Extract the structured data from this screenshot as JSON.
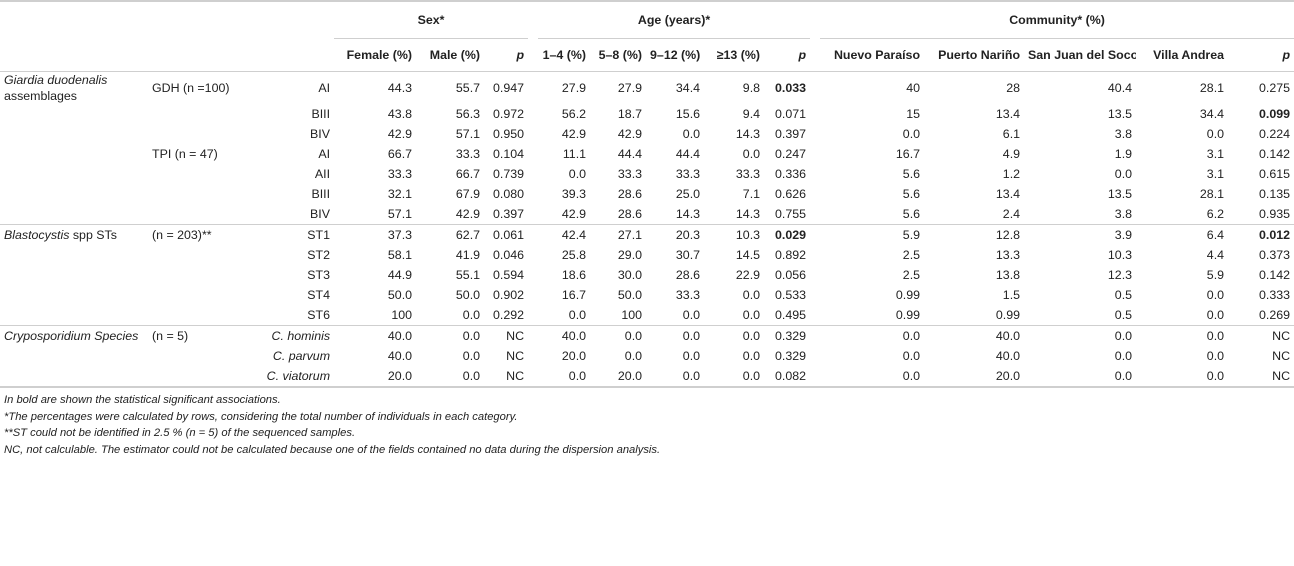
{
  "header": {
    "groups": {
      "sex": "Sex*",
      "age": "Age (years)*",
      "community": "Community* (%)"
    },
    "columns": [
      "Female (%)",
      "Male (%)",
      "p",
      "1–4 (%)",
      "5–8 (%)",
      "9–12 (%)",
      "≥13 (%)",
      "p",
      "Nuevo Paraíso",
      "Puerto Nariño",
      "San Juan del Soco",
      "Villa Andrea",
      "p"
    ]
  },
  "sections": [
    {
      "name_line1": "Giardia duodenalis",
      "name_line2": "assemblages",
      "rows": [
        {
          "method": "GDH (n =100)",
          "type": "AI",
          "values": [
            "44.3",
            "55.7",
            "0.947",
            "27.9",
            "27.9",
            "34.4",
            "9.8",
            "0.033",
            "40",
            "28",
            "40.4",
            "28.1",
            "0.275"
          ],
          "bold": [
            7
          ]
        },
        {
          "method": "",
          "type": "BIII",
          "values": [
            "43.8",
            "56.3",
            "0.972",
            "56.2",
            "18.7",
            "15.6",
            "9.4",
            "0.071",
            "15",
            "13.4",
            "13.5",
            "34.4",
            "0.099"
          ],
          "bold": [
            12
          ]
        },
        {
          "method": "",
          "type": "BIV",
          "values": [
            "42.9",
            "57.1",
            "0.950",
            "42.9",
            "42.9",
            "0.0",
            "14.3",
            "0.397",
            "0.0",
            "6.1",
            "3.8",
            "0.0",
            "0.224"
          ],
          "bold": []
        },
        {
          "method": "TPI (n = 47)",
          "type": "AI",
          "values": [
            "66.7",
            "33.3",
            "0.104",
            "11.1",
            "44.4",
            "44.4",
            "0.0",
            "0.247",
            "16.7",
            "4.9",
            "1.9",
            "3.1",
            "0.142"
          ],
          "bold": []
        },
        {
          "method": "",
          "type": "AII",
          "values": [
            "33.3",
            "66.7",
            "0.739",
            "0.0",
            "33.3",
            "33.3",
            "33.3",
            "0.336",
            "5.6",
            "1.2",
            "0.0",
            "3.1",
            "0.615"
          ],
          "bold": []
        },
        {
          "method": "",
          "type": "BIII",
          "values": [
            "32.1",
            "67.9",
            "0.080",
            "39.3",
            "28.6",
            "25.0",
            "7.1",
            "0.626",
            "5.6",
            "13.4",
            "13.5",
            "28.1",
            "0.135"
          ],
          "bold": []
        },
        {
          "method": "",
          "type": "BIV",
          "values": [
            "57.1",
            "42.9",
            "0.397",
            "42.9",
            "28.6",
            "14.3",
            "14.3",
            "0.755",
            "5.6",
            "2.4",
            "3.8",
            "6.2",
            "0.935"
          ],
          "bold": []
        }
      ]
    },
    {
      "name_italic": "Blastocystis",
      "name_rest": " spp STs",
      "method": "(n = 203)**",
      "rows": [
        {
          "type": "ST1",
          "values": [
            "37.3",
            "62.7",
            "0.061",
            "42.4",
            "27.1",
            "20.3",
            "10.3",
            "0.029",
            "5.9",
            "12.8",
            "3.9",
            "6.4",
            "0.012"
          ],
          "bold": [
            7,
            12
          ]
        },
        {
          "type": "ST2",
          "values": [
            "58.1",
            "41.9",
            "0.046",
            "25.8",
            "29.0",
            "30.7",
            "14.5",
            "0.892",
            "2.5",
            "13.3",
            "10.3",
            "4.4",
            "0.373"
          ],
          "bold": []
        },
        {
          "type": "ST3",
          "values": [
            "44.9",
            "55.1",
            "0.594",
            "18.6",
            "30.0",
            "28.6",
            "22.9",
            "0.056",
            "2.5",
            "13.8",
            "12.3",
            "5.9",
            "0.142"
          ],
          "bold": []
        },
        {
          "type": "ST4",
          "values": [
            "50.0",
            "50.0",
            "0.902",
            "16.7",
            "50.0",
            "33.3",
            "0.0",
            "0.533",
            "0.99",
            "1.5",
            "0.5",
            "0.0",
            "0.333"
          ],
          "bold": []
        },
        {
          "type": "ST6",
          "values": [
            "100",
            "0.0",
            "0.292",
            "0.0",
            "100",
            "0.0",
            "0.0",
            "0.495",
            "0.99",
            "0.99",
            "0.5",
            "0.0",
            "0.269"
          ],
          "bold": []
        }
      ]
    },
    {
      "name": "Cryposporidium Species",
      "method": "(n = 5)",
      "rows": [
        {
          "type": "C. hominis",
          "values": [
            "40.0",
            "0.0",
            "NC",
            "40.0",
            "0.0",
            "0.0",
            "0.0",
            "0.329",
            "0.0",
            "40.0",
            "0.0",
            "0.0",
            "NC"
          ],
          "bold": []
        },
        {
          "type": "C. parvum",
          "values": [
            "40.0",
            "0.0",
            "NC",
            "20.0",
            "0.0",
            "0.0",
            "0.0",
            "0.329",
            "0.0",
            "40.0",
            "0.0",
            "0.0",
            "NC"
          ],
          "bold": []
        },
        {
          "type": "C. viatorum",
          "values": [
            "20.0",
            "0.0",
            "NC",
            "0.0",
            "20.0",
            "0.0",
            "0.0",
            "0.082",
            "0.0",
            "20.0",
            "0.0",
            "0.0",
            "NC"
          ],
          "bold": []
        }
      ]
    }
  ],
  "notes": [
    "In bold are shown the statistical significant associations.",
    "*The percentages were calculated by rows, considering the total number of individuals in each category.",
    "**ST could not be identified in 2.5 % (n = 5) of the sequenced samples.",
    "NC, not calculable. The estimator could not be calculated because one of the fields contained no data during the dispersion analysis."
  ]
}
